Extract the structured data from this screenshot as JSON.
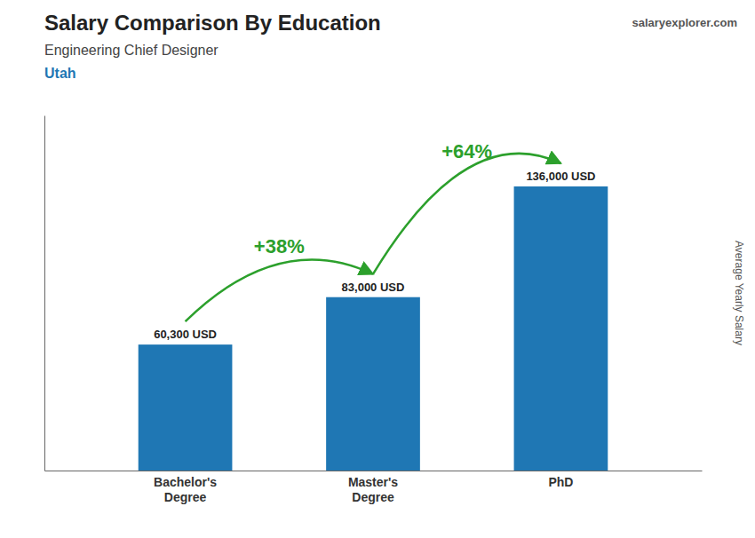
{
  "chart_data": {
    "type": "bar",
    "title": "Salary Comparison By Education",
    "subtitle": "Engineering Chief Designer",
    "ylabel": "Average Yearly Salary",
    "categories": [
      "Bachelor's\nDegree",
      "Master's\nDegree",
      "PhD"
    ],
    "values": [
      60300,
      83000,
      136000
    ],
    "value_labels": [
      "60,300 USD",
      "83,000 USD",
      "136,000 USD"
    ],
    "data_labels": true,
    "ylim": [
      0,
      170000
    ],
    "tick_labels": "x",
    "grid": false,
    "annotations": [
      {
        "text": "+38%",
        "between": [
          "Bachelor's\nDegree",
          "Master's\nDegree"
        ]
      },
      {
        "text": "+64%",
        "between": [
          "Master's\nDegree",
          "PhD"
        ]
      },
      {
        "text": "Utah"
      },
      {
        "text": "salaryexplorer.com"
      }
    ]
  }
}
